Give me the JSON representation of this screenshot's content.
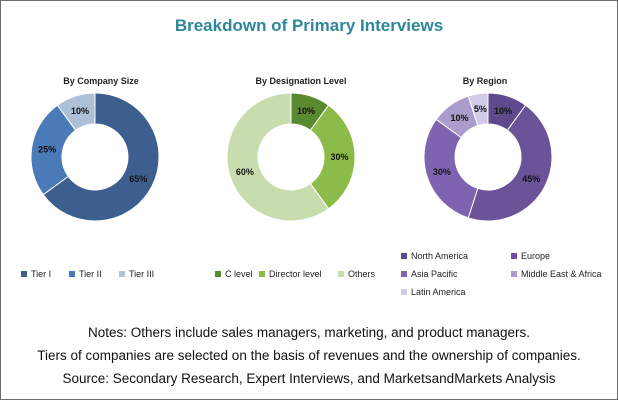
{
  "title": "Breakdown of Primary Interviews",
  "chart_data": [
    {
      "type": "pie",
      "variant": "donut",
      "title": "By Company Size",
      "categories": [
        "Tier I",
        "Tier II",
        "Tier III"
      ],
      "values": [
        65,
        25,
        10
      ],
      "labels": [
        "65%",
        "25%",
        "10%"
      ],
      "colors": [
        "#3d5f8f",
        "#4a7ab8",
        "#aebfd8"
      ],
      "legend_position": "bottom"
    },
    {
      "type": "pie",
      "variant": "donut",
      "title": "By Designation Level",
      "categories": [
        "C level",
        "Director level",
        "Others"
      ],
      "values": [
        10,
        30,
        60
      ],
      "labels": [
        "10%",
        "30%",
        "60%"
      ],
      "colors": [
        "#5a8a2f",
        "#8dbb4a",
        "#c8dcae"
      ],
      "legend_position": "bottom"
    },
    {
      "type": "pie",
      "variant": "donut",
      "title": "By Region",
      "categories": [
        "North America",
        "Europe",
        "Asia Pacific",
        "Middle East & Africa",
        "Latin America"
      ],
      "values": [
        10,
        45,
        30,
        10,
        5
      ],
      "labels": [
        "10%",
        "45%",
        "30%",
        "10%",
        "5%"
      ],
      "colors": [
        "#5e4a8c",
        "#6b5399",
        "#7e64b0",
        "#ac9ccc",
        "#d3cae6"
      ],
      "legend_position": "bottom"
    }
  ],
  "notes": [
    "Notes: Others include sales managers, marketing, and product managers.",
    "Tiers of companies are selected on the basis of revenues and the ownership of companies.",
    "Source: Secondary Research, Expert Interviews, and MarketsandMarkets Analysis"
  ]
}
